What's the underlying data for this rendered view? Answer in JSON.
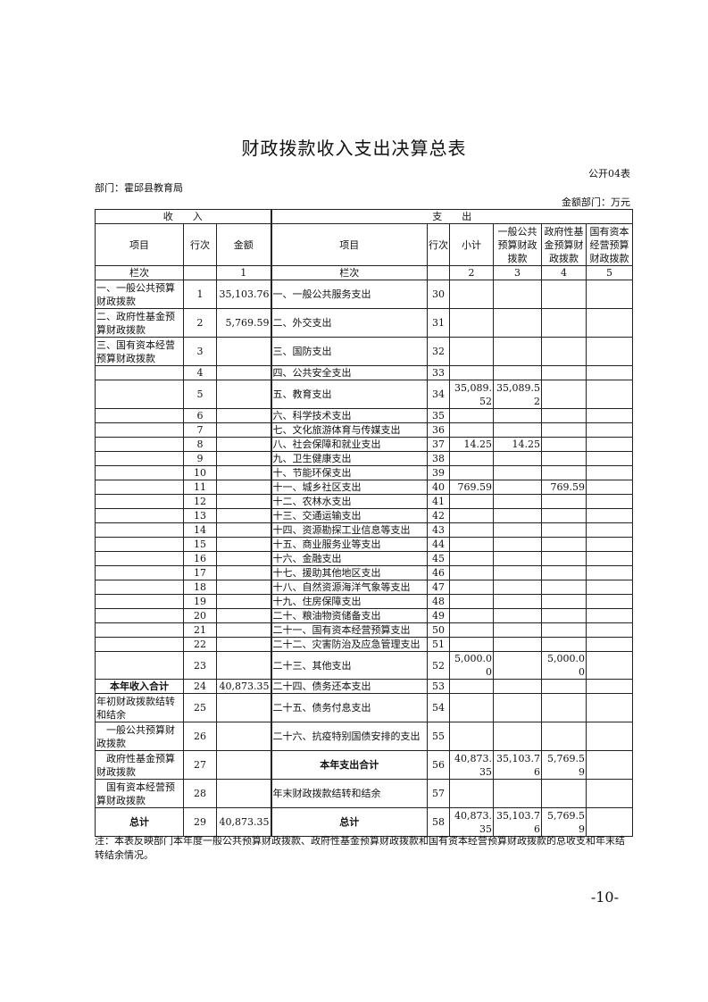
{
  "title": "财政拨款收入支出决算总表",
  "form_no": "公开04表",
  "department": "部门：霍邱县教育局",
  "unit": "金额部门：万元",
  "header": {
    "income": "收　　入",
    "expense": "支　　出",
    "item": "项目",
    "line_no": "行次",
    "amount": "金额",
    "exp_item": "项目",
    "exp_line_no": "行次",
    "subtotal": "小计",
    "general": "一般公共预算财政拨款",
    "fund": "政府性基金预算财政拨款",
    "capital": "国有资本经营预算财政拨款",
    "col_label": "栏次",
    "col1": "1",
    "col_label2": "栏次",
    "col2": "2",
    "col3": "3",
    "col4": "4",
    "col5": "5"
  },
  "rows": [
    {
      "ii": "一、一般公共预算财政拨款",
      "in": "1",
      "ia": "35,103.76",
      "ei": "一、一般公共服务支出",
      "en": "30",
      "s": "",
      "g": "",
      "f": "",
      "c": "",
      "h": 32
    },
    {
      "ii": "二、政府性基金预算财政拨款",
      "in": "2",
      "ia": "5,769.59",
      "ei": "二、外交支出",
      "en": "31",
      "s": "",
      "g": "",
      "f": "",
      "c": "",
      "h": 32
    },
    {
      "ii": "三、国有资本经营预算财政拨款",
      "in": "3",
      "ia": "",
      "ei": "三、国防支出",
      "en": "32",
      "s": "",
      "g": "",
      "f": "",
      "c": "",
      "h": 32
    },
    {
      "ii": "",
      "in": "4",
      "ia": "",
      "ei": "四、公共安全支出",
      "en": "33",
      "s": "",
      "g": "",
      "f": "",
      "c": "",
      "h": 16
    },
    {
      "ii": "",
      "in": "5",
      "ia": "",
      "ei": "五、教育支出",
      "en": "34",
      "s": "35,089.52",
      "g": "35,089.52",
      "f": "",
      "c": "",
      "h": 32
    },
    {
      "ii": "",
      "in": "6",
      "ia": "",
      "ei": "六、科学技术支出",
      "en": "35",
      "s": "",
      "g": "",
      "f": "",
      "c": "",
      "h": 16
    },
    {
      "ii": "",
      "in": "7",
      "ia": "",
      "ei": "七、文化旅游体育与传媒支出",
      "en": "36",
      "s": "",
      "g": "",
      "f": "",
      "c": "",
      "h": 16
    },
    {
      "ii": "",
      "in": "8",
      "ia": "",
      "ei": "八、社会保障和就业支出",
      "en": "37",
      "s": "14.25",
      "g": "14.25",
      "f": "",
      "c": "",
      "h": 16
    },
    {
      "ii": "",
      "in": "9",
      "ia": "",
      "ei": "九、卫生健康支出",
      "en": "38",
      "s": "",
      "g": "",
      "f": "",
      "c": "",
      "h": 16
    },
    {
      "ii": "",
      "in": "10",
      "ia": "",
      "ei": "十、节能环保支出",
      "en": "39",
      "s": "",
      "g": "",
      "f": "",
      "c": "",
      "h": 16
    },
    {
      "ii": "",
      "in": "11",
      "ia": "",
      "ei": "十一、城乡社区支出",
      "en": "40",
      "s": "769.59",
      "g": "",
      "f": "769.59",
      "c": "",
      "h": 16
    },
    {
      "ii": "",
      "in": "12",
      "ia": "",
      "ei": "十二、农林水支出",
      "en": "41",
      "s": "",
      "g": "",
      "f": "",
      "c": "",
      "h": 16
    },
    {
      "ii": "",
      "in": "13",
      "ia": "",
      "ei": "十三、交通运输支出",
      "en": "42",
      "s": "",
      "g": "",
      "f": "",
      "c": "",
      "h": 16
    },
    {
      "ii": "",
      "in": "14",
      "ia": "",
      "ei": "十四、资源勘探工业信息等支出",
      "en": "43",
      "s": "",
      "g": "",
      "f": "",
      "c": "",
      "h": 16
    },
    {
      "ii": "",
      "in": "15",
      "ia": "",
      "ei": "十五、商业服务业等支出",
      "en": "44",
      "s": "",
      "g": "",
      "f": "",
      "c": "",
      "h": 16
    },
    {
      "ii": "",
      "in": "16",
      "ia": "",
      "ei": "十六、金融支出",
      "en": "45",
      "s": "",
      "g": "",
      "f": "",
      "c": "",
      "h": 16
    },
    {
      "ii": "",
      "in": "17",
      "ia": "",
      "ei": "十七、援助其他地区支出",
      "en": "46",
      "s": "",
      "g": "",
      "f": "",
      "c": "",
      "h": 16
    },
    {
      "ii": "",
      "in": "18",
      "ia": "",
      "ei": "十八、自然资源海洋气象等支出",
      "en": "47",
      "s": "",
      "g": "",
      "f": "",
      "c": "",
      "h": 16
    },
    {
      "ii": "",
      "in": "19",
      "ia": "",
      "ei": "十九、住房保障支出",
      "en": "48",
      "s": "",
      "g": "",
      "f": "",
      "c": "",
      "h": 16
    },
    {
      "ii": "",
      "in": "20",
      "ia": "",
      "ei": "二十、粮油物资储备支出",
      "en": "49",
      "s": "",
      "g": "",
      "f": "",
      "c": "",
      "h": 16
    },
    {
      "ii": "",
      "in": "21",
      "ia": "",
      "ei": "二十一、国有资本经营预算支出",
      "en": "50",
      "s": "",
      "g": "",
      "f": "",
      "c": "",
      "h": 16
    },
    {
      "ii": "",
      "in": "22",
      "ia": "",
      "ei": "二十二、灾害防治及应急管理支出",
      "en": "51",
      "s": "",
      "g": "",
      "f": "",
      "c": "",
      "h": 16
    },
    {
      "ii": "",
      "in": "23",
      "ia": "",
      "ei": "二十三、其他支出",
      "en": "52",
      "s": "5,000.00",
      "g": "",
      "f": "5,000.00",
      "c": "",
      "h": 16
    },
    {
      "ii": "本年收入合计",
      "in": "24",
      "ia": "40,873.35",
      "ei": "二十四、债务还本支出",
      "en": "53",
      "s": "",
      "g": "",
      "f": "",
      "c": "",
      "h": 16,
      "ib": true
    },
    {
      "ii": "年初财政拨款结转和结余",
      "in": "25",
      "ia": "",
      "ei": "二十五、债务付息支出",
      "en": "54",
      "s": "",
      "g": "",
      "f": "",
      "c": "",
      "h": 32
    },
    {
      "ii": "　一般公共预算财政拨款",
      "in": "26",
      "ia": "",
      "ei": "二十六、抗疫特别国债安排的支出",
      "en": "55",
      "s": "",
      "g": "",
      "f": "",
      "c": "",
      "h": 32
    },
    {
      "ii": "　政府性基金预算财政拨款",
      "in": "27",
      "ia": "",
      "ei": "本年支出合计",
      "en": "56",
      "s": "40,873.35",
      "g": "35,103.76",
      "f": "5,769.59",
      "c": "",
      "h": 32,
      "eb": true
    },
    {
      "ii": "　国有资本经营预算财政拨款",
      "in": "28",
      "ia": "",
      "ei": "年末财政拨款结转和结余",
      "en": "57",
      "s": "",
      "g": "",
      "f": "",
      "c": "",
      "h": 32
    },
    {
      "ii": "总计",
      "in": "29",
      "ia": "40,873.35",
      "ei": "总计",
      "en": "58",
      "s": "40,873.35",
      "g": "35,103.76",
      "f": "5,769.59",
      "c": "",
      "h": 32,
      "ib": true,
      "eb": true
    }
  ],
  "note": "注：本表反映部门本年度一般公共预算财政拨款、政府性基金预算财政拨款和国有资本经营预算财政拨款的总收支和年末结转结余情况。",
  "page_number": "-10-"
}
